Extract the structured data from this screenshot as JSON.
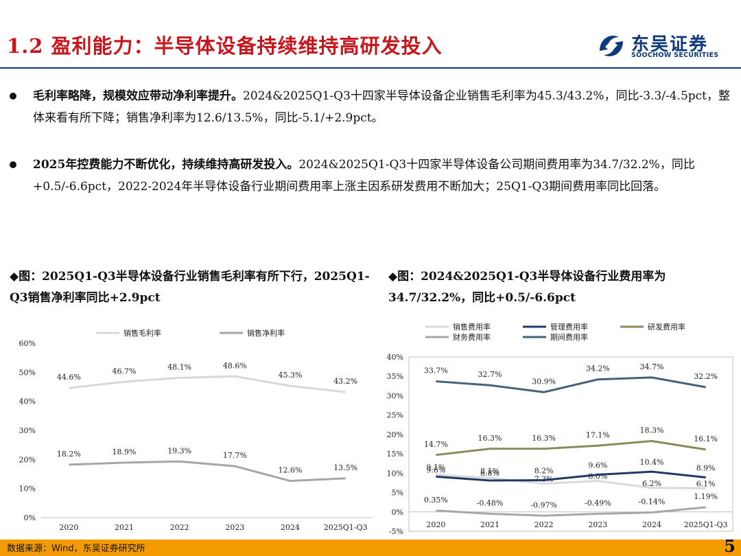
{
  "header": {
    "title": "1.2 盈利能力：半导体设备持续维持高研发投入",
    "logo_cn": "东吴证券",
    "logo_en": "SOOCHOW SECURITIES",
    "logo_color": "#0d3a7a",
    "title_color": "#c8161d"
  },
  "bullets": [
    {
      "bold": "毛利率略降，规模效应带动净利率提升。",
      "text": "2024&2025Q1-Q3十四家半导体设备企业销售毛利率为45.3/43.2%，同比-3.3/-4.5pct，整体来看有所下降；销售净利率为12.6/13.5%，同比-5.1/+2.9pct。"
    },
    {
      "bold": "2025年控费能力不断优化，持续维持高研发投入。",
      "text": "2024&2025Q1-Q3十四家半导体设备公司期间费用率为34.7/32.2%，同比+0.5/-6.6pct，2022-2024年半导体设备行业期间费用率上涨主因系研发费用不断加大；25Q1-Q3期间费用率同比回落。"
    }
  ],
  "captions": {
    "left": "◆图：2025Q1-Q3半导体设备行业销售毛利率有所下行，2025Q1-Q3销售净利率同比+2.9pct",
    "right": "◆图：2024&2025Q1-Q3半导体设备行业费用率为34.7/32.2%，同比+0.5/-6.6pct"
  },
  "chart_data": [
    {
      "type": "line",
      "categories": [
        "2020",
        "2021",
        "2022",
        "2023",
        "2024",
        "2025Q1-Q3"
      ],
      "ylim": [
        0,
        60
      ],
      "yticks": [
        "0%",
        "10%",
        "20%",
        "30%",
        "40%",
        "50%",
        "60%"
      ],
      "series": [
        {
          "name": "销售毛利率",
          "color": "#d8d8d8",
          "values": [
            44.6,
            46.7,
            48.1,
            48.6,
            45.3,
            43.2
          ],
          "labels": [
            "44.6%",
            "46.7%",
            "48.1%",
            "48.6%",
            "45.3%",
            "43.2%"
          ]
        },
        {
          "name": "销售净利率",
          "color": "#a6a6a6",
          "values": [
            18.2,
            18.9,
            19.3,
            17.7,
            12.6,
            13.5
          ],
          "labels": [
            "18.2%",
            "18.9%",
            "19.3%",
            "17.7%",
            "12.6%",
            "13.5%"
          ]
        }
      ]
    },
    {
      "type": "line",
      "categories": [
        "2020",
        "2021",
        "2022",
        "2023",
        "2024",
        "2025Q1-Q3"
      ],
      "ylim": [
        -5,
        40
      ],
      "yticks": [
        "-5%",
        "0%",
        "5%",
        "10%",
        "15%",
        "20%",
        "25%",
        "30%",
        "35%",
        "40%"
      ],
      "series": [
        {
          "name": "销售费用率",
          "color": "#d9d9d9",
          "values": [
            9.6,
            8.8,
            7.3,
            8.0,
            6.2,
            6.1
          ],
          "labels": [
            "9.6%",
            "8.8%",
            "7.3%",
            "8.0%",
            "6.2%",
            "6.1%"
          ]
        },
        {
          "name": "管理费用率",
          "color": "#1f3864",
          "values": [
            9.1,
            8.1,
            8.2,
            9.6,
            10.4,
            8.9
          ],
          "labels": [
            "9.1%",
            "8.1%",
            "8.2%",
            "9.6%",
            "10.4%",
            "8.9%"
          ]
        },
        {
          "name": "研发费用率",
          "color": "#8b8b5a",
          "values": [
            14.7,
            16.3,
            16.3,
            17.1,
            18.3,
            16.1
          ],
          "labels": [
            "14.7%",
            "16.3%",
            "16.3%",
            "17.1%",
            "18.3%",
            "16.1%"
          ]
        },
        {
          "name": "财务费用率",
          "color": "#a6a6a6",
          "values": [
            0.35,
            -0.48,
            -0.97,
            -0.49,
            -0.14,
            1.19
          ],
          "labels": [
            "0.35%",
            "-0.48%",
            "-0.97%",
            "-0.49%",
            "-0.14%",
            "1.19%"
          ]
        },
        {
          "name": "期间费用率",
          "color": "#44617b",
          "values": [
            33.7,
            32.7,
            30.9,
            34.2,
            34.7,
            32.2
          ],
          "labels": [
            "33.7%",
            "32.7%",
            "30.9%",
            "34.2%",
            "34.7%",
            "32.2%"
          ]
        }
      ]
    }
  ],
  "footer": {
    "source": "数据来源：Wind，东吴证券研究所",
    "page": "5",
    "color": "#f39b00"
  }
}
